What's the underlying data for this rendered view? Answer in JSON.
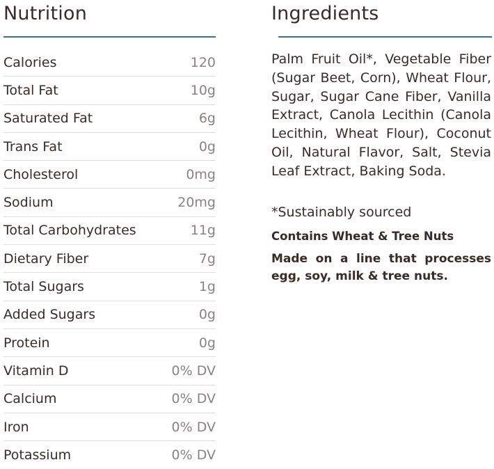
{
  "nutrition": {
    "title": "Nutrition",
    "rows": [
      {
        "name": "Calories",
        "amount": "120"
      },
      {
        "name": "Total Fat",
        "amount": "10g"
      },
      {
        "name": "Saturated Fat",
        "amount": "6g"
      },
      {
        "name": "Trans Fat",
        "amount": "0g"
      },
      {
        "name": "Cholesterol",
        "amount": "0mg"
      },
      {
        "name": "Sodium",
        "amount": "20mg"
      },
      {
        "name": "Total Carbohydrates",
        "amount": "11g"
      },
      {
        "name": "Dietary Fiber",
        "amount": "7g"
      },
      {
        "name": "Total Sugars",
        "amount": "1g"
      },
      {
        "name": "Added Sugars",
        "amount": "0g"
      },
      {
        "name": "Protein",
        "amount": "0g"
      },
      {
        "name": "Vitamin D",
        "amount": "0% DV"
      },
      {
        "name": "Calcium",
        "amount": "0% DV"
      },
      {
        "name": "Iron",
        "amount": "0% DV"
      },
      {
        "name": "Potassium",
        "amount": "0% DV"
      }
    ]
  },
  "ingredients": {
    "title": "Ingredients",
    "text": "Palm Fruit Oil*, Vegetable Fiber (Sugar Beet, Corn), Wheat Flour, Sugar, Sugar Cane Fiber, Vanilla Extract, Canola Lecithin (Canola Lecithin, Wheat Flour), Coconut Oil, Natural Flavor, Salt, Stevia Leaf Extract, Baking Soda.",
    "sourced_note": "*Sustainably sourced",
    "allergen": "Contains Wheat & Tree Nuts",
    "facility": "Made on a line that processes egg, soy, milk & tree nuts."
  },
  "colors": {
    "accent_rule": "#3d6f86",
    "text": "#3a2a28",
    "amount_text": "#8a8280",
    "row_divider": "#dddddd"
  }
}
